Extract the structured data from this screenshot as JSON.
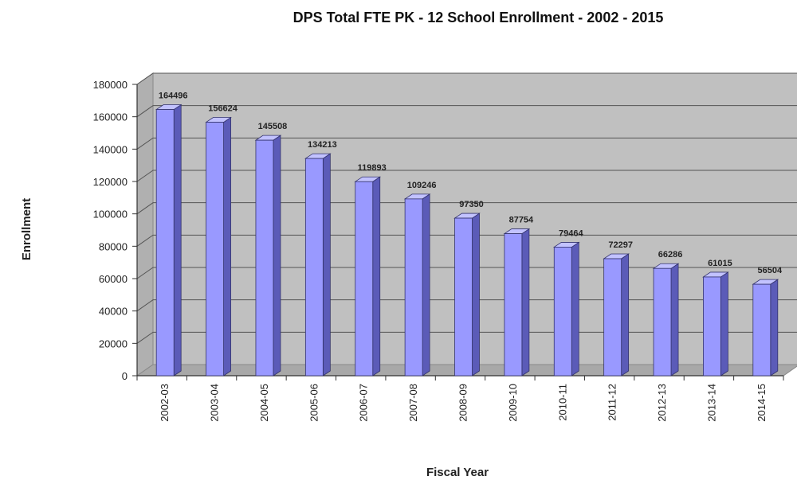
{
  "chart_data": {
    "type": "bar",
    "title": "DPS Total FTE PK - 12  School Enrollment - 2002 - 2015",
    "xlabel": "Fiscal Year",
    "ylabel": "Enrollment",
    "categories": [
      "2002-03",
      "2003-04",
      "2004-05",
      "2005-06",
      "2006-07",
      "2007-08",
      "2008-09",
      "2009-10",
      "2010-11",
      "2011-12",
      "2012-13",
      "2013-14",
      "2014-15"
    ],
    "values": [
      164496,
      156624,
      145508,
      134213,
      119893,
      109246,
      97350,
      87754,
      79464,
      72297,
      66286,
      61015,
      56504
    ],
    "ylim": [
      0,
      180000
    ],
    "yticks": [
      0,
      20000,
      40000,
      60000,
      80000,
      100000,
      120000,
      140000,
      160000,
      180000
    ],
    "grid": true,
    "legend": "none",
    "style": "3d-column",
    "colors": {
      "bar_front": "#9999FF",
      "bar_side": "#5B5BB8",
      "bar_top": "#C2C2FF",
      "wall": "#C0C0C0",
      "floor": "#A8A8A8",
      "gridline": "#555555"
    }
  }
}
